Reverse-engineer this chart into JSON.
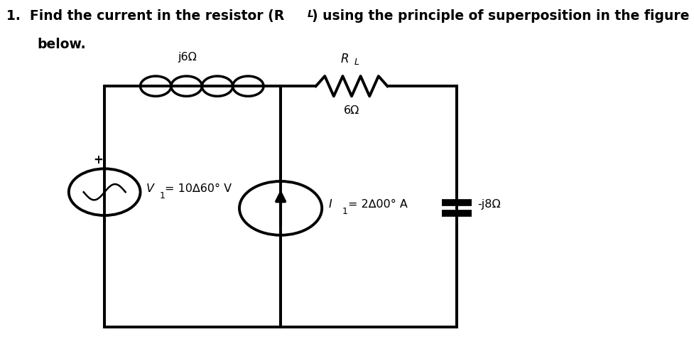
{
  "bg_color": "#ffffff",
  "circuit_color": "#000000",
  "title1": "1.  Find the current in the resistor (R",
  "title_sub": "L",
  "title2": ") using the principle of superposition in the figure",
  "title3": "below.",
  "inductor_label": "j6Ω",
  "resistor_R": "R",
  "resistor_L": "L",
  "resistor_ohm": "6Ω",
  "capacitor_label": "-j8Ω",
  "vsource_V": "V",
  "vsource_sub": "1",
  "vsource_eq": "= 10∆60° V",
  "isource_I": "I",
  "isource_sub": "1",
  "isource_eq": "= 2∆00° A",
  "BL": 0.19,
  "BR": 0.83,
  "BT": 0.76,
  "BB": 0.09,
  "MX": 0.51,
  "lw": 2.8,
  "lw_thick": 7.0
}
